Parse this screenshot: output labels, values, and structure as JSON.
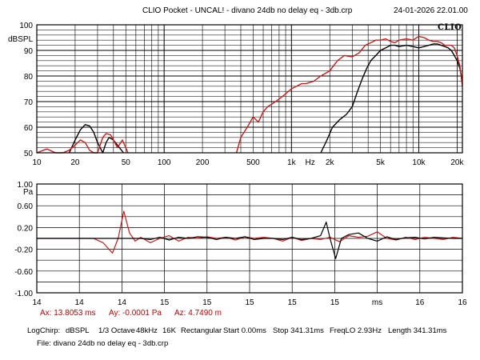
{
  "header": {
    "title": "CLIO Pocket - UNCAL! - divano 24db no delay eq - 3db.crp",
    "datetime": "24-01-2026 22.01.00",
    "brand": "CLIO"
  },
  "colors": {
    "curve_a": "#000000",
    "curve_b": "#d01818",
    "grid": "#000000"
  },
  "chart_data": [
    {
      "type": "line",
      "ylabel": "dBSPL",
      "x_scale": "log",
      "xlim": [
        10,
        22000
      ],
      "ylim": [
        50,
        100
      ],
      "y_ticks": [
        50,
        60,
        70,
        80,
        90,
        100
      ],
      "y_tick_labels": [
        "50",
        "60",
        "70",
        "80",
        "90",
        "100"
      ],
      "x_tick_labels": [
        {
          "x": 10,
          "label": "10"
        },
        {
          "x": 20,
          "label": "20"
        },
        {
          "x": 50,
          "label": "50"
        },
        {
          "x": 100,
          "label": "100"
        },
        {
          "x": 200,
          "label": "200"
        },
        {
          "x": 500,
          "label": "500"
        },
        {
          "x": 1000,
          "label": "1k"
        },
        {
          "x": 1400,
          "label": "Hz"
        },
        {
          "x": 2000,
          "label": "2k"
        },
        {
          "x": 5000,
          "label": "5k"
        },
        {
          "x": 10000,
          "label": "10k"
        },
        {
          "x": 20000,
          "label": "20k"
        }
      ],
      "series": [
        {
          "color": "#000000",
          "x": [
            18,
            20,
            22,
            24,
            26,
            28,
            30,
            33,
            35,
            37,
            40,
            43,
            48,
            1700,
            1900,
            2100,
            2400,
            2700,
            3000,
            3300,
            3600,
            3900,
            4200,
            4600,
            5000,
            5500,
            6000,
            6500,
            7000,
            8000,
            9000,
            10000,
            11000,
            12000,
            13000,
            14000,
            15000,
            16000,
            17000,
            18000,
            19000,
            20000,
            21000,
            22000
          ],
          "y": [
            50,
            55,
            59,
            61,
            60.5,
            58,
            54,
            50,
            54,
            56,
            55,
            53,
            50,
            50,
            55,
            60,
            63,
            65,
            68,
            74,
            79,
            83,
            86,
            88,
            90,
            91,
            92,
            92,
            91.5,
            92,
            91.5,
            91,
            91.5,
            92,
            92.5,
            92.5,
            92,
            91.5,
            91,
            90,
            88,
            86,
            83,
            78
          ]
        },
        {
          "color": "#d01818",
          "x": [
            10,
            12,
            14,
            16,
            18,
            20,
            22,
            24,
            26,
            28,
            30,
            33,
            35,
            38,
            40,
            43,
            47,
            52,
            370,
            400,
            450,
            500,
            550,
            600,
            650,
            700,
            800,
            900,
            1000,
            1100,
            1200,
            1300,
            1500,
            1700,
            2000,
            2300,
            2600,
            3000,
            3400,
            3800,
            4200,
            4600,
            5000,
            5500,
            6000,
            6500,
            7000,
            8000,
            9000,
            10000,
            11000,
            12000,
            13000,
            14000,
            15000,
            16000,
            17000,
            18000,
            19000,
            20000,
            21000,
            22000
          ],
          "y": [
            50,
            51.5,
            50,
            50,
            51,
            53,
            55,
            54,
            51,
            50,
            50,
            56,
            57.5,
            57,
            55,
            52,
            55,
            50,
            50,
            56,
            60,
            64,
            62,
            66,
            68,
            69,
            71,
            73,
            75,
            76,
            77,
            77,
            78,
            80,
            82,
            86,
            88,
            87.5,
            89,
            92,
            93,
            94,
            94,
            94.5,
            93.5,
            93,
            94,
            94.5,
            94,
            95.5,
            95,
            94,
            93.5,
            93.5,
            93,
            92,
            92,
            92,
            91,
            88,
            84,
            76
          ]
        }
      ]
    },
    {
      "type": "line",
      "ylabel": "Pa",
      "xlim": [
        13.75,
        16.0
      ],
      "ylim": [
        -1.0,
        1.0
      ],
      "y_tick_labels": [
        "1.00",
        "0.60",
        "0.20",
        "-0.20",
        "-0.60",
        "-1.00"
      ],
      "y_ticks": [
        1.0,
        0.6,
        0.2,
        -0.2,
        -0.6,
        -1.0
      ],
      "y_grid": [
        1.0,
        0.8,
        0.6,
        0.4,
        0.2,
        0.0,
        -0.2,
        -0.4,
        -0.6,
        -0.8,
        -1.0
      ],
      "x_tick_labels": [
        "14",
        "14",
        "14",
        "15",
        "15",
        "15",
        "15",
        "15",
        "ms",
        "16",
        "16"
      ],
      "series": [
        {
          "color": "#000000",
          "x": [
            13.75,
            14.0,
            14.1,
            14.2,
            14.3,
            14.35,
            14.4,
            14.45,
            14.5,
            14.55,
            14.6,
            14.65,
            14.7,
            14.75,
            14.8,
            14.85,
            14.9,
            14.95,
            15.0,
            15.05,
            15.1,
            15.15,
            15.2,
            15.25,
            15.28,
            15.3,
            15.33,
            15.36,
            15.4,
            15.45,
            15.5,
            15.55,
            15.6,
            15.65,
            15.7,
            15.75,
            15.8,
            15.85,
            15.9,
            15.95,
            16.0
          ],
          "y": [
            0.0,
            0.0,
            0.0,
            0.0,
            0.0,
            -0.02,
            0.02,
            -0.03,
            0.02,
            0.0,
            0.03,
            0.02,
            -0.02,
            0.02,
            0.0,
            0.03,
            -0.02,
            0.0,
            0.0,
            -0.02,
            0.02,
            -0.02,
            0.0,
            0.05,
            0.3,
            0.0,
            -0.37,
            0.0,
            0.07,
            0.1,
            0.0,
            -0.05,
            0.03,
            -0.02,
            0.01,
            0.02,
            -0.01,
            0.02,
            0.01,
            0.0,
            0.0
          ]
        },
        {
          "color": "#d01818",
          "x": [
            13.75,
            14.0,
            14.05,
            14.1,
            14.15,
            14.18,
            14.21,
            14.24,
            14.27,
            14.3,
            14.35,
            14.4,
            14.45,
            14.5,
            14.55,
            14.6,
            14.65,
            14.7,
            14.75,
            14.8,
            14.85,
            14.9,
            14.95,
            15.0,
            15.05,
            15.1,
            15.15,
            15.2,
            15.25,
            15.3,
            15.35,
            15.4,
            15.45,
            15.5,
            15.55,
            15.6,
            15.65,
            15.7,
            15.75,
            15.8,
            15.85,
            15.9,
            15.95,
            16.0
          ],
          "y": [
            0.0,
            0.0,
            0.0,
            -0.08,
            -0.27,
            0.0,
            0.5,
            0.1,
            -0.05,
            0.02,
            -0.08,
            0.0,
            0.05,
            -0.05,
            0.02,
            0.0,
            0.03,
            0.0,
            0.02,
            -0.03,
            0.03,
            0.0,
            0.02,
            0.0,
            -0.05,
            0.02,
            -0.04,
            0.0,
            -0.02,
            0.02,
            -0.06,
            0.05,
            0.02,
            0.04,
            0.12,
            0.0,
            -0.03,
            0.02,
            -0.02,
            0.02,
            0.0,
            -0.02,
            0.02,
            0.0
          ]
        }
      ]
    }
  ],
  "cursor": {
    "ax": "Ax: 13.8053 ms",
    "ay": "Ay: -0.0001 Pa",
    "az": "Az: 4.7490 m"
  },
  "info": {
    "logchirp": "LogChirp:",
    "units": "dBSPL",
    "octave": "1/3 Octave",
    "rate": "48kHz",
    "size": "16K",
    "window": "Rectangular",
    "start": "Start 0.00ms",
    "stop": "Stop 341.31ms",
    "freqlo": "FreqLO 2.93Hz",
    "length": "Length 341.31ms",
    "file": "File: divano 24db no delay eq - 3db.crp"
  }
}
